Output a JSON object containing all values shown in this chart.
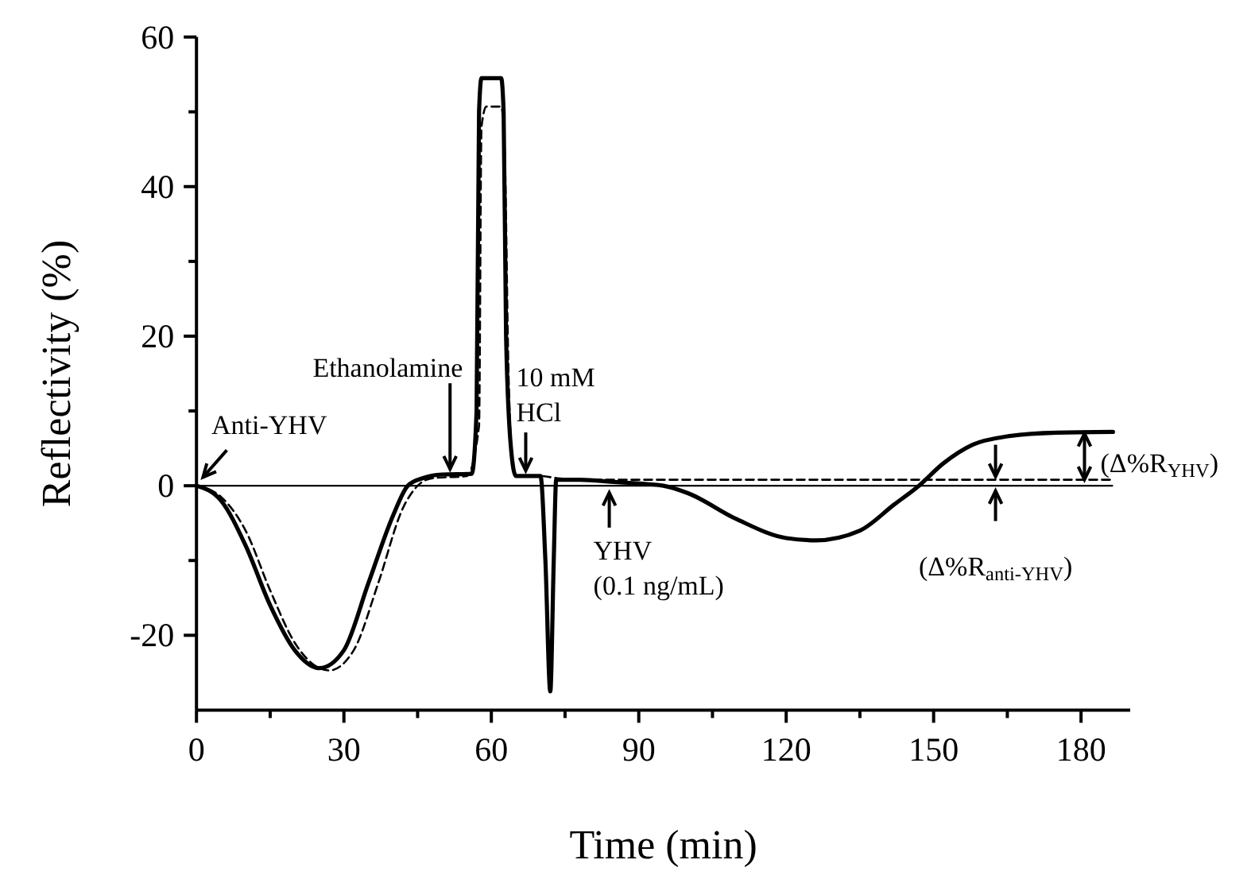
{
  "chart_data": {
    "type": "line",
    "xlabel": "Time (min)",
    "ylabel": "Reflectivity (%)",
    "xlim": [
      0,
      190
    ],
    "ylim": [
      -30,
      60
    ],
    "xticks": [
      0,
      {
        "value": 15,
        "label": null
      },
      30,
      {
        "value": 45,
        "label": null
      },
      60,
      {
        "value": 75,
        "label": null
      },
      90,
      {
        "value": 105,
        "label": null
      },
      120,
      {
        "value": 135,
        "label": null
      },
      150,
      {
        "value": 165,
        "label": null
      },
      180
    ],
    "yticks": [
      -20,
      {
        "value": -10,
        "label": null
      },
      0,
      {
        "value": 10,
        "label": null
      },
      20,
      {
        "value": 30,
        "label": null
      },
      40,
      {
        "value": 50,
        "label": null
      },
      60
    ],
    "grid": false,
    "series": [
      {
        "color": "#000000",
        "line_style": "solid",
        "x": [
          0,
          5,
          10,
          15,
          20,
          25,
          30,
          35,
          40,
          43,
          46,
          50,
          56,
          57,
          57.5,
          58,
          62,
          62.5,
          63,
          64,
          65,
          70,
          71,
          72,
          72.7,
          73.2,
          78,
          85,
          95,
          100,
          110,
          120,
          126,
          135,
          142,
          147,
          152,
          158,
          165,
          175,
          186.5
        ],
        "values": [
          0,
          -2,
          -8,
          -16,
          -22,
          -24.4,
          -22,
          -13,
          -4,
          0,
          1,
          1.5,
          1.6,
          10,
          50,
          54.5,
          54.5,
          50,
          20,
          5,
          1.3,
          1.3,
          -10,
          -27.5,
          -10,
          0.8,
          0.8,
          0.5,
          0,
          -1,
          -4.5,
          -7,
          -7.3,
          -6,
          -2.5,
          0,
          3,
          5.5,
          6.6,
          7.1,
          7.2
        ]
      },
      {
        "color": "#000000",
        "line_style": "dashed",
        "x": [
          0,
          5,
          10,
          15,
          20,
          27,
          32,
          37,
          42,
          45,
          48,
          55,
          57.5,
          58,
          59,
          62,
          62.7,
          63.5,
          64.5,
          65,
          70,
          73.5,
          80,
          186.5
        ],
        "values": [
          0,
          -1.5,
          -6,
          -14,
          -21,
          -24.7,
          -22,
          -13,
          -3,
          0,
          1,
          1.3,
          8,
          48,
          50.7,
          50.7,
          45,
          15,
          2,
          1.3,
          1.3,
          1,
          0.8,
          0.8
        ]
      }
    ],
    "ref_lines": [
      {
        "axis": "y",
        "value": 0,
        "color": "#000000",
        "line_style": "solid"
      }
    ],
    "annotations": [
      {
        "text": "Anti-YHV",
        "x": 1,
        "y": 0.5
      },
      {
        "text": "Ethanolamine",
        "x": 51.6,
        "y": 1.8
      },
      {
        "text": "10 mM\nHCl",
        "x": 67,
        "y": 1.6
      },
      {
        "text": "YHV\n(0.1 ng/mL)",
        "x": 84,
        "y": -0.5
      },
      {
        "text": "(Δ%R$_{YHV}$)",
        "x": 180.7,
        "y": 7.2
      },
      {
        "text": "(Δ%R$_{anti-YHV}$)",
        "x": 162.6,
        "y": 0.8
      }
    ]
  }
}
